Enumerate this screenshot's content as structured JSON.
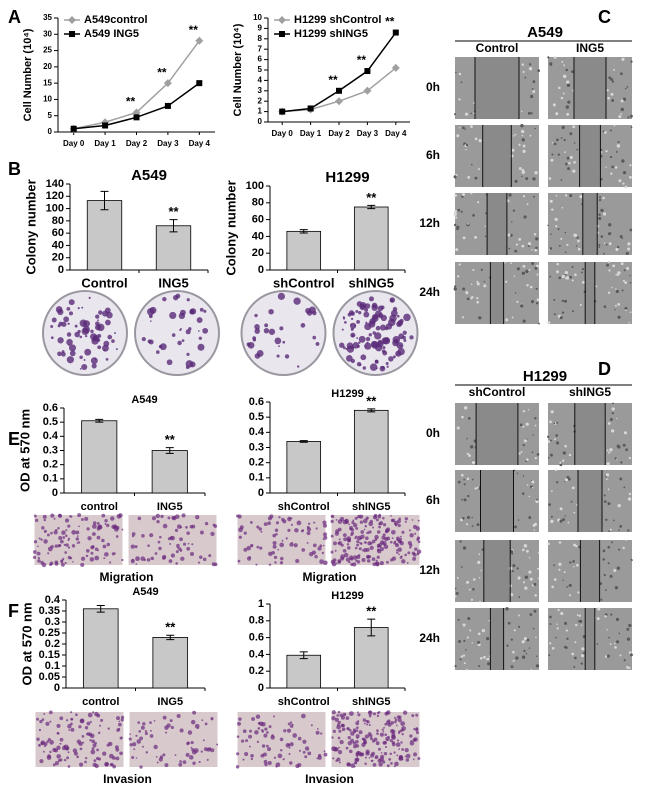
{
  "panel_labels": [
    "A",
    "B",
    "C",
    "D",
    "E",
    "F"
  ],
  "wound_assays": [
    {
      "title": "A549",
      "columns": [
        "Control",
        "ING5"
      ],
      "rows": [
        "0h",
        "6h",
        "12h",
        "24h"
      ]
    },
    {
      "title": "H1299",
      "columns": [
        "shControl",
        "shING5"
      ],
      "rows": [
        "0h",
        "6h",
        "12h",
        "24h"
      ]
    }
  ],
  "chart_data": [
    {
      "type": "line",
      "y_label": "Cell Number (10⁴)",
      "categories": [
        "Day 0",
        "Day 1",
        "Day 2",
        "Day 3",
        "Day 4"
      ],
      "series": [
        {
          "name": "A549control",
          "color": "#a0a0a0",
          "marker": "diamond",
          "values": [
            1,
            3,
            6,
            15,
            28
          ]
        },
        {
          "name": "A549 ING5",
          "color": "#000000",
          "marker": "square",
          "values": [
            1,
            2,
            4.5,
            8,
            15
          ]
        }
      ],
      "significance": [
        null,
        null,
        "**",
        "**",
        "**"
      ],
      "ylim": [
        0,
        35
      ],
      "yticks": [
        0,
        5,
        10,
        15,
        20,
        25,
        30,
        35
      ],
      "legend": "upper left"
    },
    {
      "type": "line",
      "y_label": "Cell Number (10⁴)",
      "categories": [
        "Day 0",
        "Day 1",
        "Day 2",
        "Day 3",
        "Day 4"
      ],
      "series": [
        {
          "name": "H1299 shControl",
          "color": "#a0a0a0",
          "marker": "diamond",
          "values": [
            1,
            1.2,
            2,
            3,
            5.2
          ]
        },
        {
          "name": "H1299 shING5",
          "color": "#000000",
          "marker": "square",
          "values": [
            1,
            1.3,
            3,
            4.9,
            8.6
          ]
        }
      ],
      "significance": [
        null,
        null,
        "**",
        "**",
        "**"
      ],
      "ylim": [
        0,
        10
      ],
      "yticks": [
        0,
        1,
        2,
        3,
        4,
        5,
        6,
        7,
        8,
        9,
        10
      ],
      "legend": "upper left"
    },
    {
      "type": "bar",
      "title": "A549",
      "y_label": "Colony number",
      "categories": [
        "Control",
        "ING5"
      ],
      "values": [
        113,
        72
      ],
      "errors": [
        15,
        10
      ],
      "color": "#c8c8c8",
      "significance": [
        null,
        "**"
      ],
      "ylim": [
        0,
        140
      ],
      "yticks": [
        0,
        20,
        40,
        60,
        80,
        100,
        120,
        140
      ]
    },
    {
      "type": "bar",
      "title": "H1299",
      "y_label": "Colony number",
      "categories": [
        "shControl",
        "shING5"
      ],
      "values": [
        46,
        75
      ],
      "errors": [
        2,
        2
      ],
      "color": "#c8c8c8",
      "significance": [
        null,
        "**"
      ],
      "ylim": [
        0,
        100
      ],
      "yticks": [
        0,
        20,
        40,
        60,
        80,
        100
      ]
    },
    {
      "type": "bar",
      "title": "A549",
      "y_label": "OD at 570 nm",
      "caption": "Migration",
      "categories": [
        "control",
        "ING5"
      ],
      "values": [
        0.51,
        0.3
      ],
      "errors": [
        0.01,
        0.02
      ],
      "color": "#c8c8c8",
      "significance": [
        null,
        "**"
      ],
      "ylim": [
        0,
        0.6
      ],
      "yticks": [
        0,
        0.1,
        0.2,
        0.3,
        0.4,
        0.5,
        0.6
      ]
    },
    {
      "type": "bar",
      "title": "H1299",
      "caption": "Migration",
      "categories": [
        "shControl",
        "shING5"
      ],
      "values": [
        0.34,
        0.545
      ],
      "errors": [
        0.005,
        0.01
      ],
      "color": "#c8c8c8",
      "significance": [
        null,
        "**"
      ],
      "ylim": [
        0,
        0.6
      ],
      "yticks": [
        0,
        0.1,
        0.2,
        0.3,
        0.4,
        0.5,
        0.6
      ]
    },
    {
      "type": "bar",
      "title": "A549",
      "y_label": "OD at 570 nm",
      "caption": "Invasion",
      "categories": [
        "control",
        "ING5"
      ],
      "values": [
        0.36,
        0.23
      ],
      "errors": [
        0.015,
        0.01
      ],
      "color": "#c8c8c8",
      "significance": [
        null,
        "**"
      ],
      "ylim": [
        0,
        0.4
      ],
      "yticks": [
        0,
        0.05,
        0.1,
        0.15,
        0.2,
        0.25,
        0.3,
        0.35,
        0.4
      ]
    },
    {
      "type": "bar",
      "title": "H1299",
      "caption": "Invasion",
      "categories": [
        "shControl",
        "shING5"
      ],
      "values": [
        0.39,
        0.72
      ],
      "errors": [
        0.04,
        0.1
      ],
      "color": "#c8c8c8",
      "significance": [
        null,
        "**"
      ],
      "ylim": [
        0,
        1
      ],
      "yticks": [
        0,
        0.2,
        0.4,
        0.6,
        0.8,
        1
      ]
    }
  ]
}
